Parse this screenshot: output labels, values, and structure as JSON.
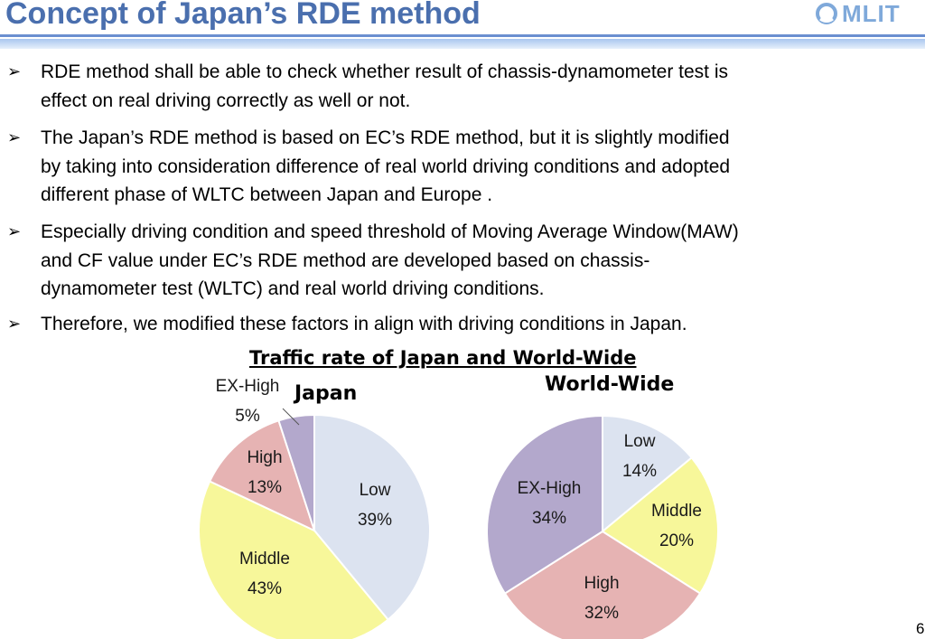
{
  "slide": {
    "title": "Concept of Japan’s RDE method",
    "logo_text": "MLIT",
    "page_number": "6"
  },
  "bullets": [
    "RDE method shall be able to check whether result of chassis-dynamometer test  is\neffect on real driving correctly as well or not.",
    "The Japan’s RDE method is based on EC’s RDE method, but it is slightly modified\nby taking into consideration difference of real world driving conditions and adopted\ndifferent phase of WLTC between Japan and Europe .",
    "Especially driving condition and speed threshold of Moving Average Window(MAW)\nand CF value under EC’s RDE method are developed based on chassis-\ndynamometer test (WLTC)  and real world driving conditions.",
    "Therefore, we modified these factors in align with driving conditions in Japan."
  ],
  "bullet_marker": "➢",
  "chart_data": [
    {
      "type": "pie",
      "title": "Traffic rate of Japan and World-Wide",
      "name": "Japan",
      "slices": [
        {
          "label": "Low",
          "value": 39,
          "display": "39%",
          "color": "#dce3f0"
        },
        {
          "label": "Middle",
          "value": 43,
          "display": "43%",
          "color": "#f7f79a"
        },
        {
          "label": "High",
          "value": 13,
          "display": "13%",
          "color": "#e6b3b3"
        },
        {
          "label": "EX-High",
          "value": 5,
          "display": "5%",
          "color": "#b3a8cc"
        }
      ]
    },
    {
      "type": "pie",
      "title": "Traffic rate of Japan and World-Wide",
      "name": "World-Wide",
      "slices": [
        {
          "label": "Low",
          "value": 14,
          "display": "14%",
          "color": "#dce3f0"
        },
        {
          "label": "Middle",
          "value": 20,
          "display": "20%",
          "color": "#f7f79a"
        },
        {
          "label": "High",
          "value": 32,
          "display": "32%",
          "color": "#e6b3b3"
        },
        {
          "label": "EX-High",
          "value": 34,
          "display": "34%",
          "color": "#b3a8cc"
        }
      ]
    }
  ]
}
